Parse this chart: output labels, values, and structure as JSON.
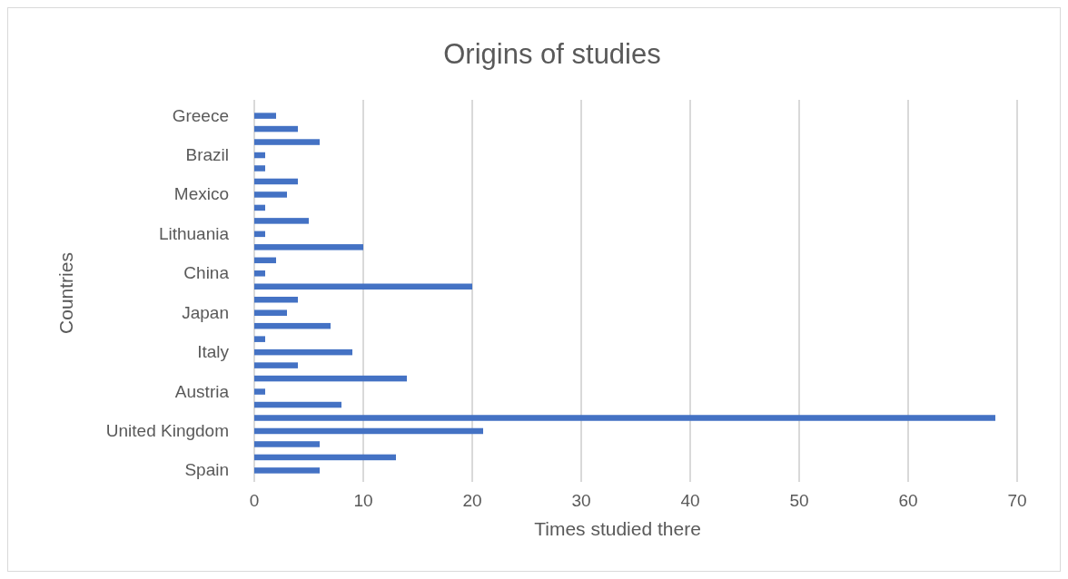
{
  "chart_data": {
    "type": "bar",
    "orientation": "horizontal",
    "title": "Origins of studies",
    "xlabel": "Times studied there",
    "ylabel": "Countries",
    "categories": [
      "Greece",
      null,
      null,
      "Brazil",
      null,
      null,
      "Mexico",
      null,
      null,
      "Lithuania",
      null,
      null,
      "China",
      null,
      null,
      "Japan",
      null,
      null,
      "Italy",
      null,
      null,
      "Austria",
      null,
      null,
      "United Kingdom",
      null,
      null,
      "Spain"
    ],
    "values": [
      2,
      4,
      6,
      1,
      1,
      4,
      3,
      1,
      5,
      1,
      10,
      2,
      1,
      20,
      4,
      3,
      7,
      1,
      9,
      4,
      14,
      1,
      8,
      68,
      21,
      6,
      13,
      6
    ],
    "color": "#4472c4",
    "xlim": [
      0,
      70
    ],
    "xticks": [
      0,
      10,
      20,
      30,
      40,
      50,
      60,
      70
    ],
    "grid": "x"
  }
}
